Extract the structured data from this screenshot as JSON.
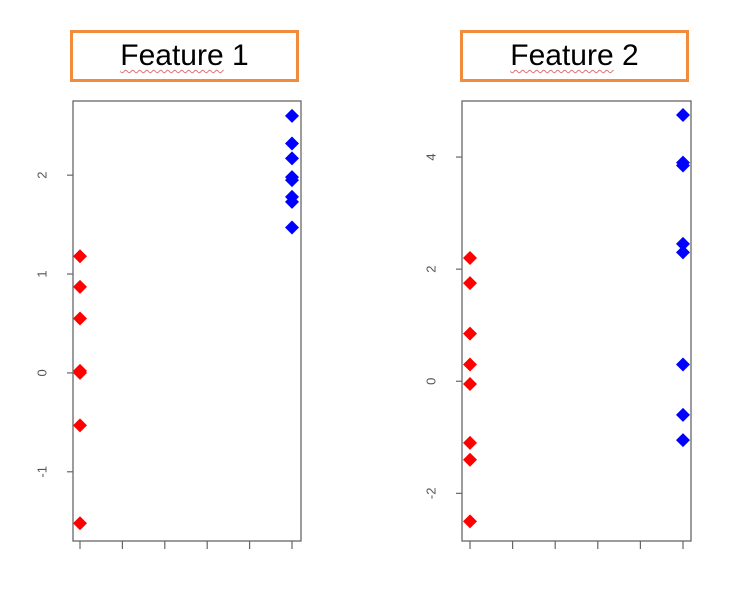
{
  "chart_data": [
    {
      "type": "scatter",
      "title_word": "Feature",
      "title_number": "1",
      "ylim": [
        -1.7,
        2.75
      ],
      "yticks": [
        -1,
        0,
        1,
        2
      ],
      "ytick_labels": [
        "-1",
        "0",
        "1",
        "2"
      ],
      "xtick_count": 6,
      "grid": false,
      "series": [
        {
          "color": "#ff0000",
          "x": 0,
          "values": [
            1.18,
            0.87,
            0.55,
            0.02,
            0.0,
            -0.53,
            -1.52
          ]
        },
        {
          "color": "#0000ff",
          "x": 1,
          "values": [
            2.6,
            2.32,
            2.17,
            1.98,
            1.95,
            1.78,
            1.73,
            1.47
          ]
        }
      ]
    },
    {
      "type": "scatter",
      "title_word": "Feature",
      "title_number": "2",
      "ylim": [
        -2.85,
        5.0
      ],
      "yticks": [
        -2,
        0,
        2,
        4
      ],
      "ytick_labels": [
        "-2",
        "0",
        "2",
        "4"
      ],
      "xtick_count": 6,
      "grid": false,
      "series": [
        {
          "color": "#ff0000",
          "x": 0,
          "values": [
            2.2,
            1.75,
            0.85,
            0.3,
            -0.05,
            -1.1,
            -1.4,
            -2.5
          ]
        },
        {
          "color": "#0000ff",
          "x": 1,
          "values": [
            4.75,
            3.9,
            3.85,
            2.45,
            2.3,
            0.3,
            -0.6,
            -1.05
          ]
        }
      ]
    }
  ]
}
